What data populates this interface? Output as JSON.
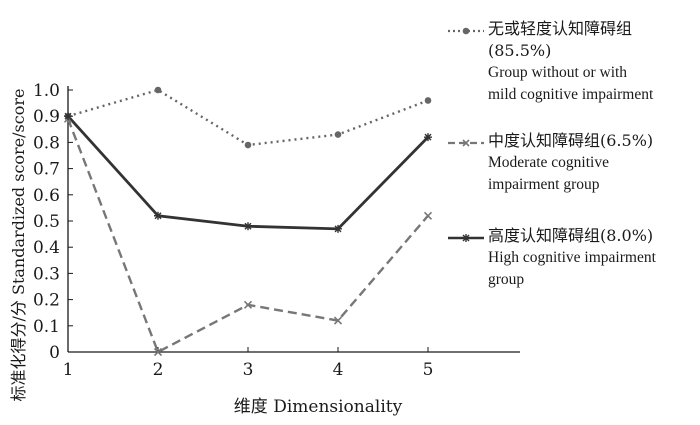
{
  "chart_data": {
    "type": "line",
    "x": [
      1,
      2,
      3,
      4,
      5
    ],
    "xlabel": "维度 Dimensionality",
    "ylabel": "标准化得分/分 Standardized score/score",
    "ylim": [
      0,
      1.0
    ],
    "yticks": [
      "0",
      "0.1",
      "0.2",
      "0.3",
      "0.4",
      "0.5",
      "0.6",
      "0.7",
      "0.8",
      "0.9",
      "1.0"
    ],
    "xticks": [
      "1",
      "2",
      "3",
      "4",
      "5"
    ],
    "grid": false,
    "legend_position": "right",
    "series": [
      {
        "name": "无或轻度认知障碍组(85.5%)",
        "name_line1": "无或轻度认知障碍组",
        "name_line2": "(85.5%)",
        "name_en_1": "Group without or with",
        "name_en_2": "mild cognitive impairment",
        "values": [
          0.9,
          1.0,
          0.79,
          0.83,
          0.96
        ],
        "style": "dotted",
        "marker": "circle",
        "color": "#666666"
      },
      {
        "name": "中度认知障碍组(6.5%)",
        "name_line1": "中度认知障碍组(6.5%)",
        "name_en_1": "Moderate cognitive",
        "name_en_2": "impairment group",
        "values": [
          0.89,
          0.0,
          0.18,
          0.12,
          0.52
        ],
        "style": "dashed",
        "marker": "x",
        "color": "#777777"
      },
      {
        "name": "高度认知障碍组(8.0%)",
        "name_line1": "高度认知障碍组(8.0%)",
        "name_en_1": "High cognitive impairment",
        "name_en_2": "group",
        "values": [
          0.9,
          0.52,
          0.48,
          0.47,
          0.82
        ],
        "style": "solid",
        "marker": "star",
        "color": "#333333"
      }
    ]
  }
}
